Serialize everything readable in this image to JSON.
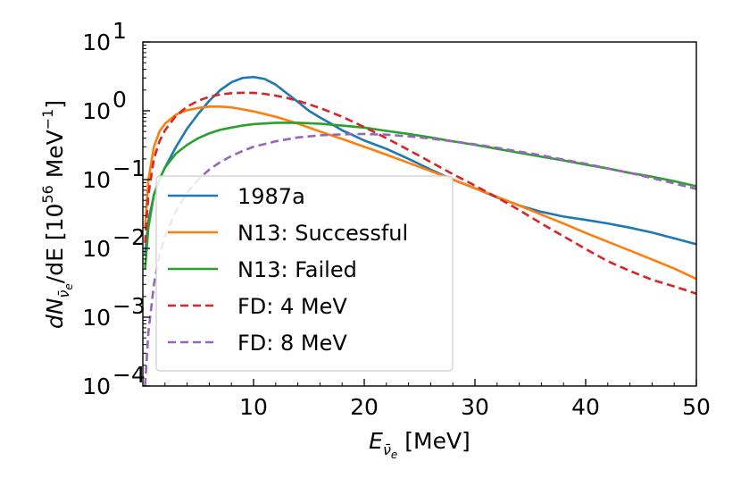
{
  "chart_data": {
    "type": "line",
    "title": "",
    "xlabel": {
      "base": "E",
      "sub": "ν̄",
      "subsub": "e",
      "unit": " [MeV]"
    },
    "ylabel": {
      "lead": "dN",
      "sub": "ν̄",
      "subsub": "e",
      "mid": "/dE [10",
      "exp": "56",
      "unit": " MeV",
      "unitexp": "−1",
      "end": "]"
    },
    "xlim": [
      0,
      50
    ],
    "ylim": [
      0.0001,
      10
    ],
    "yscale": "log",
    "grid": false,
    "legend_position": "lower-left",
    "x_ticks": [
      {
        "value": 10,
        "label": "10"
      },
      {
        "value": 20,
        "label": "20"
      },
      {
        "value": 30,
        "label": "30"
      },
      {
        "value": 40,
        "label": "40"
      },
      {
        "value": 50,
        "label": "50"
      }
    ],
    "y_ticks": [
      {
        "value": 0.0001,
        "base": "10",
        "exp": "−4"
      },
      {
        "value": 0.001,
        "base": "10",
        "exp": "−3"
      },
      {
        "value": 0.01,
        "base": "10",
        "exp": "−2"
      },
      {
        "value": 0.1,
        "base": "10",
        "exp": "−1"
      },
      {
        "value": 1,
        "base": "10",
        "exp": "0"
      },
      {
        "value": 10,
        "base": "10",
        "exp": "1"
      }
    ],
    "series": [
      {
        "name": "1987a",
        "color": "#1f77b4",
        "style": "solid",
        "x": [
          0.2,
          0.5,
          1,
          1.5,
          2,
          3,
          4,
          5,
          6,
          7,
          8,
          9,
          10,
          11,
          12,
          13,
          14,
          15,
          16,
          17,
          18,
          19,
          20,
          22,
          24,
          26,
          28,
          30,
          32,
          34,
          36,
          38,
          40,
          42,
          44,
          46,
          48,
          50
        ],
        "y": [
          0.008,
          0.025,
          0.06,
          0.1,
          0.15,
          0.3,
          0.55,
          0.9,
          1.4,
          2.0,
          2.6,
          3.0,
          3.1,
          2.9,
          2.4,
          1.8,
          1.35,
          1.0,
          0.8,
          0.65,
          0.52,
          0.44,
          0.37,
          0.28,
          0.2,
          0.14,
          0.1,
          0.075,
          0.055,
          0.042,
          0.034,
          0.029,
          0.026,
          0.023,
          0.02,
          0.017,
          0.014,
          0.0115
        ]
      },
      {
        "name": "N13: Successful",
        "color": "#ff7f0e",
        "style": "solid",
        "x": [
          0.2,
          0.5,
          1,
          1.5,
          2,
          3,
          4,
          5,
          6,
          7,
          8,
          9,
          10,
          12,
          14,
          16,
          18,
          20,
          22,
          24,
          26,
          28,
          30,
          32,
          34,
          36,
          38,
          40,
          42,
          44,
          46,
          48,
          50
        ],
        "y": [
          0.02,
          0.1,
          0.3,
          0.5,
          0.65,
          0.88,
          1.02,
          1.1,
          1.15,
          1.15,
          1.12,
          1.05,
          0.98,
          0.82,
          0.65,
          0.5,
          0.39,
          0.3,
          0.23,
          0.175,
          0.133,
          0.1,
          0.075,
          0.056,
          0.042,
          0.031,
          0.023,
          0.0168,
          0.0125,
          0.0093,
          0.0069,
          0.0051,
          0.0036
        ]
      },
      {
        "name": "N13: Failed",
        "color": "#2ca02c",
        "style": "solid",
        "x": [
          0.2,
          0.5,
          1,
          1.5,
          2,
          3,
          4,
          5,
          6,
          7,
          8,
          9,
          10,
          12,
          14,
          16,
          18,
          20,
          22,
          24,
          26,
          28,
          30,
          32,
          34,
          36,
          38,
          40,
          42,
          44,
          46,
          48,
          50
        ],
        "y": [
          0.005,
          0.02,
          0.06,
          0.1,
          0.15,
          0.24,
          0.32,
          0.4,
          0.47,
          0.53,
          0.57,
          0.61,
          0.64,
          0.67,
          0.67,
          0.65,
          0.61,
          0.57,
          0.51,
          0.46,
          0.41,
          0.36,
          0.32,
          0.28,
          0.245,
          0.215,
          0.19,
          0.165,
          0.145,
          0.125,
          0.11,
          0.095,
          0.08
        ]
      },
      {
        "name": "FD: 4 MeV",
        "color": "#d62728",
        "style": "dashed",
        "x": [
          0.2,
          0.5,
          1,
          1.5,
          2,
          3,
          4,
          5,
          6,
          7,
          8,
          9,
          10,
          11,
          12,
          13,
          14,
          16,
          18,
          20,
          22,
          24,
          26,
          28,
          30,
          32,
          34,
          36,
          38,
          40,
          42,
          44,
          46,
          48,
          50
        ],
        "y": [
          0.012,
          0.06,
          0.2,
          0.36,
          0.52,
          0.85,
          1.15,
          1.4,
          1.6,
          1.73,
          1.8,
          1.83,
          1.82,
          1.76,
          1.66,
          1.54,
          1.4,
          1.1,
          0.82,
          0.58,
          0.4,
          0.27,
          0.18,
          0.12,
          0.082,
          0.055,
          0.036,
          0.023,
          0.015,
          0.0098,
          0.0065,
          0.0047,
          0.0035,
          0.0028,
          0.0022
        ]
      },
      {
        "name": "FD: 8 MeV",
        "color": "#9467bd",
        "style": "dashed",
        "x": [
          0.2,
          0.5,
          1,
          1.5,
          2,
          3,
          4,
          5,
          6,
          7,
          8,
          9,
          10,
          12,
          14,
          16,
          18,
          20,
          22,
          24,
          26,
          28,
          30,
          32,
          34,
          36,
          38,
          40,
          42,
          44,
          46,
          48,
          50
        ],
        "y": [
          0.0001,
          0.0006,
          0.003,
          0.008,
          0.015,
          0.035,
          0.065,
          0.1,
          0.14,
          0.18,
          0.22,
          0.26,
          0.3,
          0.36,
          0.41,
          0.44,
          0.455,
          0.46,
          0.45,
          0.425,
          0.395,
          0.36,
          0.325,
          0.29,
          0.255,
          0.225,
          0.195,
          0.17,
          0.145,
          0.125,
          0.105,
          0.088,
          0.073
        ]
      }
    ]
  }
}
